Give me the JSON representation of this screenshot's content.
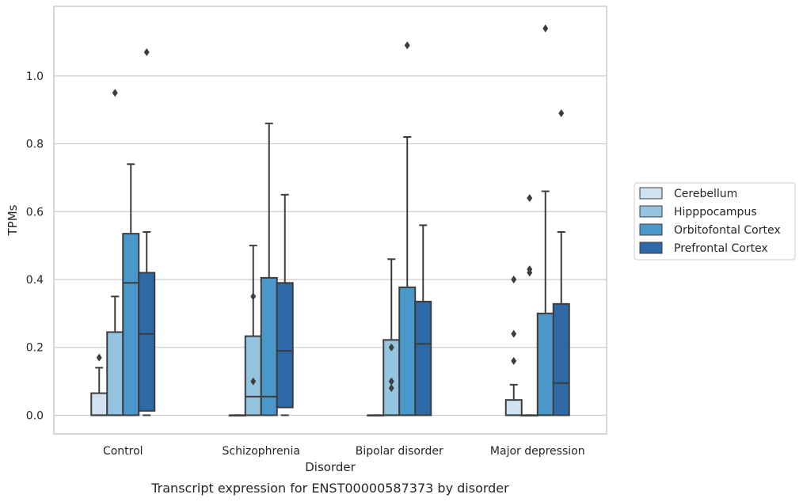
{
  "caption": "Transcript expression for ENST00000587373 by disorder",
  "chart_data": {
    "type": "box",
    "title": "",
    "xlabel": "Disorder",
    "ylabel": "TPMs",
    "ylim": [
      -0.055,
      1.205
    ],
    "yticks": [
      "0.0",
      "0.2",
      "0.4",
      "0.6",
      "0.8",
      "1.0"
    ],
    "grid": true,
    "legend_position": "right",
    "categories": [
      "Control",
      "Schizophrenia",
      "Bipolar disorder",
      "Major depression"
    ],
    "series": [
      {
        "name": "Cerebellum",
        "color": "#d0e1f2",
        "boxes": [
          {
            "whislo": 0,
            "q1": 0,
            "med": 0,
            "q3": 0.065,
            "whishi": 0.14,
            "fliers": [
              0.17
            ]
          },
          {
            "whislo": 0,
            "q1": 0,
            "med": 0,
            "q3": 0,
            "whishi": 0,
            "fliers": []
          },
          {
            "whislo": 0,
            "q1": 0,
            "med": 0,
            "q3": 0,
            "whishi": 0,
            "fliers": []
          },
          {
            "whislo": 0,
            "q1": 0,
            "med": 0,
            "q3": 0.045,
            "whishi": 0.09,
            "fliers": [
              0.16,
              0.24,
              0.4
            ]
          }
        ]
      },
      {
        "name": "Hipppocampus",
        "color": "#94c4df",
        "boxes": [
          {
            "whislo": 0,
            "q1": 0,
            "med": 0,
            "q3": 0.245,
            "whishi": 0.35,
            "fliers": [
              0.95
            ]
          },
          {
            "whislo": 0,
            "q1": 0,
            "med": 0.055,
            "q3": 0.233,
            "whishi": 0.5,
            "fliers": [
              0.1,
              0.35
            ]
          },
          {
            "whislo": 0,
            "q1": 0,
            "med": 0,
            "q3": 0.222,
            "whishi": 0.46,
            "fliers": [
              0.08,
              0.1,
              0.2
            ]
          },
          {
            "whislo": 0,
            "q1": 0,
            "med": 0,
            "q3": 0,
            "whishi": 0,
            "fliers": [
              0.42,
              0.43,
              0.64
            ]
          }
        ]
      },
      {
        "name": "Orbitofontal Cortex",
        "color": "#4a98c9",
        "boxes": [
          {
            "whislo": 0,
            "q1": 0,
            "med": 0.39,
            "q3": 0.535,
            "whishi": 0.74,
            "fliers": []
          },
          {
            "whislo": 0,
            "q1": 0,
            "med": 0.055,
            "q3": 0.405,
            "whishi": 0.86,
            "fliers": []
          },
          {
            "whislo": 0,
            "q1": 0,
            "med": 0,
            "q3": 0.377,
            "whishi": 0.82,
            "fliers": [
              1.09
            ]
          },
          {
            "whislo": 0,
            "q1": 0,
            "med": 0,
            "q3": 0.3,
            "whishi": 0.66,
            "fliers": [
              1.14
            ]
          }
        ]
      },
      {
        "name": "Prefrontal Cortex",
        "color": "#2e6aa8",
        "boxes": [
          {
            "whislo": 0,
            "q1": 0.013,
            "med": 0.24,
            "q3": 0.42,
            "whishi": 0.54,
            "fliers": [
              1.07
            ]
          },
          {
            "whislo": 0,
            "q1": 0.023,
            "med": 0.19,
            "q3": 0.39,
            "whishi": 0.65,
            "fliers": []
          },
          {
            "whislo": 0,
            "q1": 0,
            "med": 0.21,
            "q3": 0.335,
            "whishi": 0.56,
            "fliers": []
          },
          {
            "whislo": 0,
            "q1": 0,
            "med": 0.095,
            "q3": 0.328,
            "whishi": 0.54,
            "fliers": [
              0.89
            ]
          }
        ]
      }
    ]
  }
}
